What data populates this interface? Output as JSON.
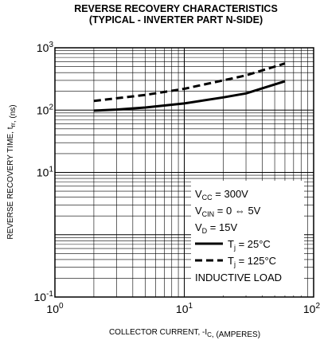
{
  "chart_data": {
    "type": "line",
    "title": "REVERSE RECOVERY CHARACTERISTICS",
    "subtitle": "(TYPICAL - INVERTER PART N-SIDE)",
    "xlabel": "COLLECTOR CURRENT, -I_C, (AMPERES)",
    "ylabel": "REVERSE RECOVERY TIME, t_rr, (ns)",
    "x_scale": "log",
    "y_scale": "log",
    "xlim": [
      1,
      100
    ],
    "ylim": [
      0.1,
      1000
    ],
    "grid": true,
    "x_ticks": [
      {
        "base": "10",
        "exp": "0"
      },
      {
        "base": "10",
        "exp": "1"
      },
      {
        "base": "10",
        "exp": "2"
      }
    ],
    "y_ticks": [
      {
        "base": "10",
        "exp": "3"
      },
      {
        "base": "10",
        "exp": "2"
      },
      {
        "base": "10",
        "exp": "1"
      },
      {
        "base": "10",
        "exp": "-1"
      }
    ],
    "legend_placement": "bottom-right",
    "conditions": [
      {
        "main": "V",
        "sub": "CC",
        "rest": " = 300V"
      },
      {
        "main": "V",
        "sub": "CIN",
        "rest": " = 0 ⇔ 5V"
      },
      {
        "main": "V",
        "sub": "D",
        "rest": " = 15V"
      }
    ],
    "footer_note": "INDUCTIVE LOAD",
    "series": [
      {
        "name": "T_j = 25°C",
        "style": "solid",
        "x": [
          2,
          3,
          5,
          10,
          20,
          30,
          60
        ],
        "y": [
          98,
          102,
          110,
          128,
          160,
          185,
          290
        ]
      },
      {
        "name": "T_j = 125°C",
        "style": "dashed",
        "x": [
          2,
          3,
          5,
          10,
          20,
          30,
          60
        ],
        "y": [
          140,
          155,
          175,
          220,
          300,
          360,
          560
        ]
      }
    ],
    "legend_labels": [
      {
        "main": "T",
        "sub": "j",
        "rest": " = 25°C"
      },
      {
        "main": "T",
        "sub": "j",
        "rest": " = 125°C"
      }
    ]
  }
}
